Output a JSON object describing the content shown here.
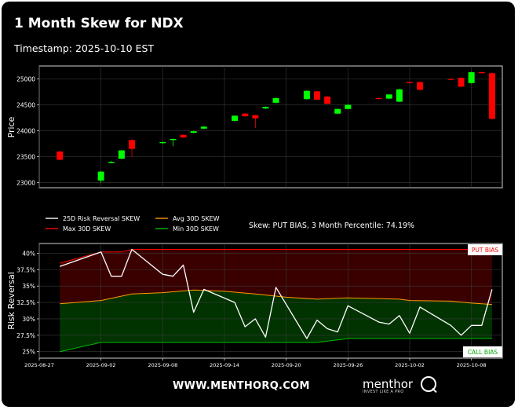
{
  "title": "1 Month Skew for NDX",
  "subtitle": "Timestamp: 2025-10-10 EST",
  "footer": {
    "url": "WWW.MENTHORQ.COM",
    "brand": "menthor",
    "brand_q": "Q",
    "brand_tagline": "INVEST LIKE A PRO"
  },
  "colors": {
    "background": "#000000",
    "up_candle": "#00ff00",
    "down_candle": "#ff0000",
    "risk_reversal_line": "#ffffff",
    "avg_line": "#ff9900",
    "max_line": "#ff0000",
    "min_line": "#00bb00",
    "put_zone": "#3a0000",
    "call_zone": "#003300"
  },
  "chart_data": [
    {
      "type": "candlestick",
      "title": "",
      "xlabel": "",
      "ylabel": "Price",
      "ylim": [
        22900,
        25250
      ],
      "yticks": [
        23000,
        23500,
        24000,
        24500,
        25000
      ],
      "grid": true,
      "candles": [
        {
          "date": "2025-08-29",
          "open": 23600,
          "close": 23440,
          "high": 23610,
          "low": 23430
        },
        {
          "date": "2025-09-02",
          "open": 23040,
          "close": 23210,
          "high": 23220,
          "low": 23000
        },
        {
          "date": "2025-09-03",
          "open": 23380,
          "close": 23400,
          "high": 23420,
          "low": 23370
        },
        {
          "date": "2025-09-04",
          "open": 23460,
          "close": 23620,
          "high": 23630,
          "low": 23450
        },
        {
          "date": "2025-09-05",
          "open": 23820,
          "close": 23650,
          "high": 23840,
          "low": 23500
        },
        {
          "date": "2025-09-08",
          "open": 23760,
          "close": 23780,
          "high": 23790,
          "low": 23740
        },
        {
          "date": "2025-09-09",
          "open": 23820,
          "close": 23840,
          "high": 23850,
          "low": 23700
        },
        {
          "date": "2025-09-10",
          "open": 23920,
          "close": 23870,
          "high": 23930,
          "low": 23860
        },
        {
          "date": "2025-09-11",
          "open": 23960,
          "close": 23990,
          "high": 24000,
          "low": 23950
        },
        {
          "date": "2025-09-12",
          "open": 24040,
          "close": 24080,
          "high": 24090,
          "low": 24030
        },
        {
          "date": "2025-09-15",
          "open": 24190,
          "close": 24290,
          "high": 24300,
          "low": 24180
        },
        {
          "date": "2025-09-16",
          "open": 24330,
          "close": 24280,
          "high": 24340,
          "low": 24270
        },
        {
          "date": "2025-09-17",
          "open": 24300,
          "close": 24240,
          "high": 24310,
          "low": 24050
        },
        {
          "date": "2025-09-18",
          "open": 24430,
          "close": 24460,
          "high": 24470,
          "low": 24420
        },
        {
          "date": "2025-09-19",
          "open": 24540,
          "close": 24630,
          "high": 24640,
          "low": 24530
        },
        {
          "date": "2025-09-22",
          "open": 24610,
          "close": 24770,
          "high": 24780,
          "low": 24600
        },
        {
          "date": "2025-09-23",
          "open": 24760,
          "close": 24600,
          "high": 24770,
          "low": 24590
        },
        {
          "date": "2025-09-24",
          "open": 24660,
          "close": 24520,
          "high": 24670,
          "low": 24510
        },
        {
          "date": "2025-09-25",
          "open": 24330,
          "close": 24420,
          "high": 24430,
          "low": 24320
        },
        {
          "date": "2025-09-26",
          "open": 24420,
          "close": 24500,
          "high": 24510,
          "low": 24410
        },
        {
          "date": "2025-09-29",
          "open": 24630,
          "close": 24620,
          "high": 24640,
          "low": 24600
        },
        {
          "date": "2025-09-30",
          "open": 24620,
          "close": 24700,
          "high": 24710,
          "low": 24610
        },
        {
          "date": "2025-10-01",
          "open": 24560,
          "close": 24800,
          "high": 24810,
          "low": 24550
        },
        {
          "date": "2025-10-02",
          "open": 24940,
          "close": 24920,
          "high": 24950,
          "low": 24910
        },
        {
          "date": "2025-10-03",
          "open": 24940,
          "close": 24790,
          "high": 24950,
          "low": 24780
        },
        {
          "date": "2025-10-06",
          "open": 25000,
          "close": 24990,
          "high": 25010,
          "low": 24980
        },
        {
          "date": "2025-10-07",
          "open": 25020,
          "close": 24850,
          "high": 25030,
          "low": 24840
        },
        {
          "date": "2025-10-08",
          "open": 24920,
          "close": 25130,
          "high": 25140,
          "low": 24910
        },
        {
          "date": "2025-10-09",
          "open": 25130,
          "close": 25110,
          "high": 25140,
          "low": 25100
        },
        {
          "date": "2025-10-10",
          "open": 25110,
          "close": 24230,
          "high": 25120,
          "low": 24220
        }
      ]
    },
    {
      "type": "line",
      "title": "",
      "xlabel": "",
      "ylabel": "Risk Reversal",
      "ylim": [
        24.0,
        41.5
      ],
      "yticks": [
        25.0,
        27.5,
        30.0,
        32.5,
        35.0,
        37.5,
        40.0
      ],
      "ytick_format": "%",
      "xlim": [
        "2025-08-27",
        "2025-10-11"
      ],
      "xticks": [
        "2025-08-27",
        "2025-09-02",
        "2025-09-08",
        "2025-09-14",
        "2025-09-20",
        "2025-09-26",
        "2025-10-02",
        "2025-10-08"
      ],
      "grid": true,
      "legend": "top-left",
      "annotation": "Skew: PUT BIAS, 3 Month Percentile: 74.19%",
      "zone_labels": {
        "top": "PUT BIAS",
        "bottom": "CALL BIAS"
      },
      "series": [
        {
          "name": "25D Risk Reversal SKEW",
          "x": [
            "2025-08-29",
            "2025-09-02",
            "2025-09-03",
            "2025-09-04",
            "2025-09-05",
            "2025-09-08",
            "2025-09-09",
            "2025-09-10",
            "2025-09-11",
            "2025-09-12",
            "2025-09-15",
            "2025-09-16",
            "2025-09-17",
            "2025-09-18",
            "2025-09-19",
            "2025-09-22",
            "2025-09-23",
            "2025-09-24",
            "2025-09-25",
            "2025-09-26",
            "2025-09-29",
            "2025-09-30",
            "2025-10-01",
            "2025-10-02",
            "2025-10-03",
            "2025-10-06",
            "2025-10-07",
            "2025-10-08",
            "2025-10-09",
            "2025-10-10"
          ],
          "values": [
            38.0,
            40.2,
            36.5,
            36.5,
            40.6,
            36.8,
            36.5,
            38.2,
            31.0,
            34.5,
            32.5,
            28.8,
            30.0,
            27.2,
            34.8,
            27.0,
            29.8,
            28.5,
            28.0,
            32.0,
            29.5,
            29.2,
            30.5,
            27.8,
            31.8,
            29.0,
            27.5,
            29.0,
            29.0,
            34.5
          ]
        },
        {
          "name": "Avg 30D SKEW",
          "x": [
            "2025-08-29",
            "2025-09-02",
            "2025-09-05",
            "2025-09-08",
            "2025-09-11",
            "2025-09-14",
            "2025-09-17",
            "2025-09-20",
            "2025-09-23",
            "2025-09-26",
            "2025-10-01",
            "2025-10-02",
            "2025-10-06",
            "2025-10-08",
            "2025-10-10"
          ],
          "values": [
            32.3,
            32.8,
            33.8,
            34.0,
            34.4,
            34.2,
            33.8,
            33.3,
            33.0,
            33.2,
            33.0,
            32.8,
            32.7,
            32.4,
            32.2
          ]
        },
        {
          "name": "Max 30D SKEW",
          "x": [
            "2025-08-29",
            "2025-09-02",
            "2025-09-04",
            "2025-09-05",
            "2025-10-10"
          ],
          "values": [
            38.5,
            40.2,
            40.2,
            40.6,
            40.6
          ]
        },
        {
          "name": "Min 30D SKEW",
          "x": [
            "2025-08-29",
            "2025-09-02",
            "2025-09-23",
            "2025-09-26",
            "2025-10-10"
          ],
          "values": [
            25.0,
            26.4,
            26.4,
            27.0,
            27.0
          ]
        }
      ]
    }
  ]
}
